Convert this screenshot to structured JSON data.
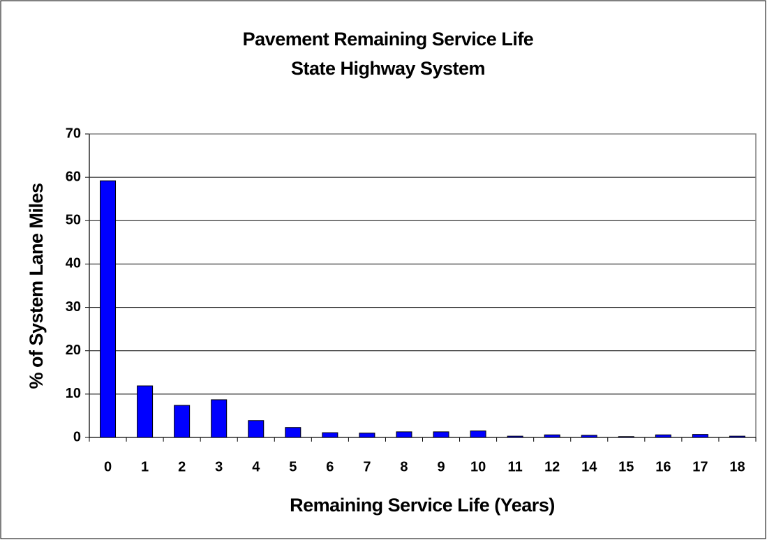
{
  "chart_data": {
    "type": "bar",
    "title": "Pavement Remaining Service Life",
    "subtitle": "State Highway System",
    "x_label": "Remaining Service Life (Years)",
    "y_label": "% of System Lane Miles",
    "categories": [
      "0",
      "1",
      "2",
      "3",
      "4",
      "5",
      "6",
      "7",
      "8",
      "9",
      "10",
      "11",
      "12",
      "14",
      "15",
      "16",
      "17",
      "18"
    ],
    "values": [
      59.2,
      11.9,
      7.4,
      8.7,
      3.9,
      2.3,
      1.1,
      1.0,
      1.3,
      1.3,
      1.5,
      0.3,
      0.6,
      0.5,
      0.2,
      0.6,
      0.7,
      0.3
    ],
    "color": "#0000ff",
    "ylim": [
      0,
      70
    ],
    "yticks": [
      0,
      10,
      20,
      30,
      40,
      50,
      60,
      70
    ],
    "grid": true
  }
}
